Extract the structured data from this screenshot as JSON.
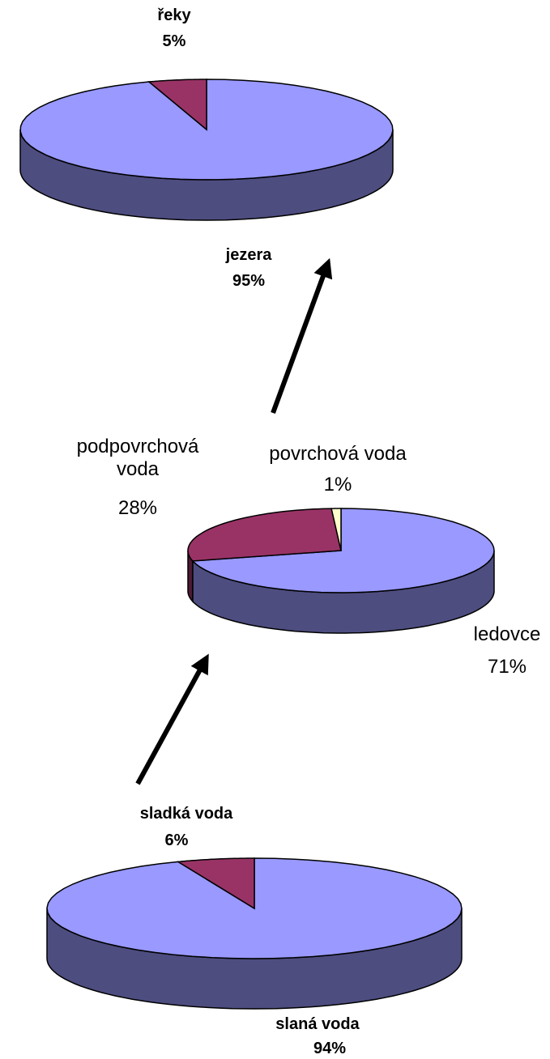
{
  "chart_data": [
    {
      "type": "pie",
      "categories": [
        "jezera",
        "řeky"
      ],
      "values": [
        95,
        5
      ],
      "value_labels": [
        "95%",
        "5%"
      ],
      "colors": [
        "#9999ff",
        "#993366"
      ]
    },
    {
      "type": "pie",
      "categories": [
        "ledovce",
        "podpovrchová voda",
        "povrchová voda"
      ],
      "values": [
        71,
        28,
        1
      ],
      "value_labels": [
        "71%",
        "28%",
        "1%"
      ],
      "colors": [
        "#9999ff",
        "#993366",
        "#ffffcc"
      ]
    },
    {
      "type": "pie",
      "categories": [
        "slaná voda",
        "sladká voda"
      ],
      "values": [
        94,
        6
      ],
      "value_labels": [
        "94%",
        "6%"
      ],
      "colors": [
        "#9999ff",
        "#993366"
      ]
    }
  ]
}
